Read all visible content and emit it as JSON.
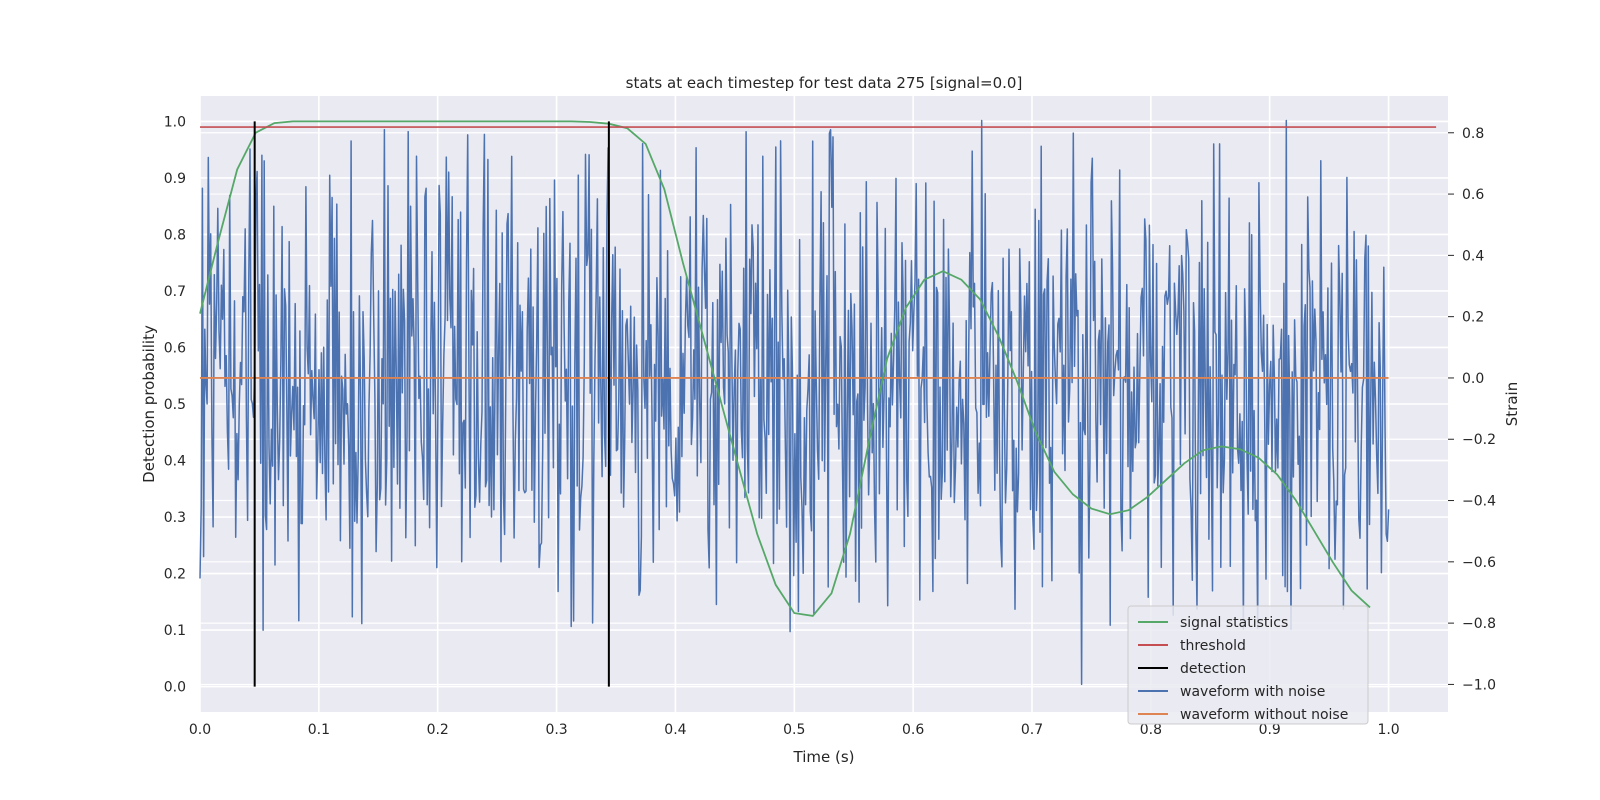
{
  "chart_data": {
    "type": "line",
    "title": "stats at each timestep for test data 275 [signal=0.0]",
    "xlabel": "Time (s)",
    "ylabel": "Detection probability",
    "y2label": "Strain",
    "xlim": [
      0.0,
      1.05
    ],
    "ylim": [
      -0.045,
      1.045
    ],
    "y2lim": [
      -1.09,
      0.92
    ],
    "x_ticks": [
      "0.0",
      "0.1",
      "0.2",
      "0.3",
      "0.4",
      "0.5",
      "0.6",
      "0.7",
      "0.8",
      "0.9",
      "1.0"
    ],
    "y_ticks": [
      "0.0",
      "0.1",
      "0.2",
      "0.3",
      "0.4",
      "0.5",
      "0.6",
      "0.7",
      "0.8",
      "0.9",
      "1.0"
    ],
    "y2_ticks": [
      "−1.0",
      "−0.8",
      "−0.6",
      "−0.4",
      "−0.2",
      "0.0",
      "0.2",
      "0.4",
      "0.6",
      "0.8"
    ],
    "grid": true,
    "legend_position": "lower-right",
    "legend": [
      {
        "label": "signal statistics",
        "color": "#55a868"
      },
      {
        "label": "threshold",
        "color": "#c44e52"
      },
      {
        "label": "detection",
        "color": "#000000"
      },
      {
        "label": "waveform with noise",
        "color": "#4c72b0"
      },
      {
        "label": "waveform without noise",
        "color": "#dd8452"
      }
    ],
    "signal_statistics": {
      "axis": "left",
      "color": "#55a868",
      "x": [
        0.0,
        0.0156,
        0.0313,
        0.0469,
        0.0625,
        0.0781,
        0.0938,
        0.1094,
        0.125,
        0.1406,
        0.1563,
        0.1719,
        0.1875,
        0.2031,
        0.2188,
        0.2344,
        0.25,
        0.2656,
        0.2813,
        0.2969,
        0.3125,
        0.3281,
        0.3438,
        0.3594,
        0.375,
        0.3906,
        0.4063,
        0.4219,
        0.4375,
        0.4531,
        0.4688,
        0.4844,
        0.5,
        0.5156,
        0.5313,
        0.5469,
        0.5625,
        0.5781,
        0.5938,
        0.6094,
        0.625,
        0.6406,
        0.6563,
        0.6719,
        0.6875,
        0.7031,
        0.7188,
        0.7344,
        0.75,
        0.7656,
        0.7813,
        0.7969,
        0.8125,
        0.8281,
        0.8438,
        0.8594,
        0.875,
        0.8906,
        0.9063,
        0.9219,
        0.9375,
        0.9531,
        0.9688,
        0.9844
      ],
      "y": [
        0.66,
        0.79,
        0.915,
        0.98,
        0.997,
        1.0,
        1.0,
        1.0,
        1.0,
        1.0,
        1.0,
        1.0,
        1.0,
        1.0,
        1.0,
        1.0,
        1.0,
        1.0,
        1.0,
        1.0,
        1.0,
        0.999,
        0.996,
        0.988,
        0.96,
        0.88,
        0.75,
        0.63,
        0.51,
        0.39,
        0.27,
        0.18,
        0.13,
        0.125,
        0.165,
        0.27,
        0.43,
        0.58,
        0.67,
        0.72,
        0.735,
        0.72,
        0.685,
        0.62,
        0.54,
        0.45,
        0.38,
        0.34,
        0.315,
        0.305,
        0.312,
        0.335,
        0.365,
        0.395,
        0.418,
        0.425,
        0.42,
        0.405,
        0.375,
        0.33,
        0.275,
        0.22,
        0.17,
        0.14
      ]
    },
    "threshold": {
      "axis": "left",
      "value": 0.99,
      "x_range": [
        0.0,
        1.04
      ],
      "color": "#c44e52"
    },
    "detections": {
      "axis": "left",
      "x": [
        0.046,
        0.344
      ],
      "y_range": [
        0.0,
        1.0
      ],
      "color": "#000000"
    },
    "waveform_without_noise": {
      "axis": "right",
      "value": 0.0,
      "x_range": [
        0.0,
        1.0
      ],
      "color": "#dd8452"
    },
    "waveform_with_noise": {
      "axis": "right",
      "color": "#4c72b0",
      "x_range": [
        0.0,
        1.0
      ],
      "num_samples": 1000,
      "sample_values": [
        0.02,
        -0.15,
        0.25,
        -0.3,
        0.4,
        -0.62,
        0.1,
        0.35,
        -0.45,
        0.55,
        -0.2,
        0.0,
        0.3,
        -0.35,
        0.5,
        -0.1,
        -0.28,
        0.6,
        -0.4,
        0.2,
        0.05,
        -0.5,
        0.45,
        -0.15,
        0.3,
        0.68,
        -0.3,
        0.1,
        -0.6,
        0.25,
        -0.05,
        0.4,
        -0.32,
        0.15,
        -0.58,
        0.55,
        0.0,
        -0.2,
        0.35,
        -0.45
      ]
    }
  }
}
